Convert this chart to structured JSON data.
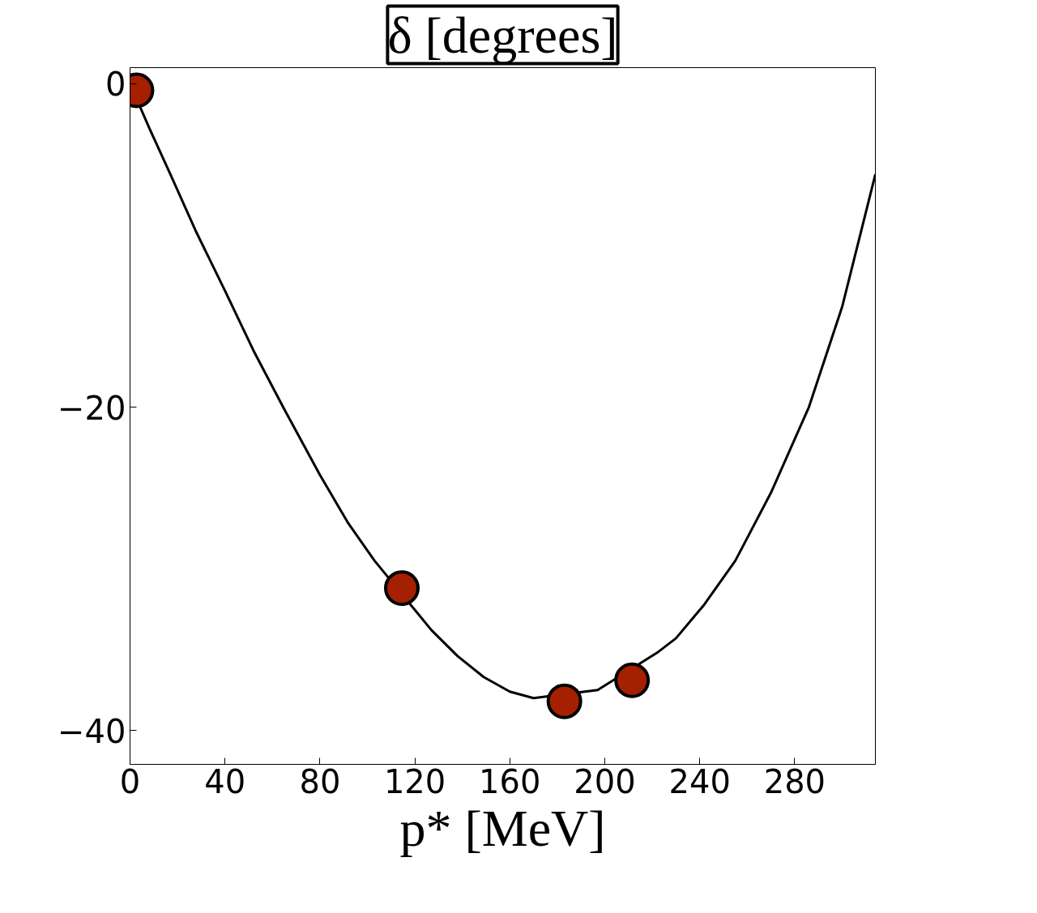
{
  "chart_data": {
    "type": "scatter",
    "ylabel": "δ [degrees]",
    "xlabel": "p* [MeV]",
    "xlim": [
      0,
      314
    ],
    "ylim": [
      -42.1,
      1.0
    ],
    "xticks": [
      0,
      40,
      80,
      120,
      160,
      200,
      240,
      280
    ],
    "yticks": [
      0,
      -20,
      -40
    ],
    "grid": false,
    "series": [
      {
        "type": "line",
        "color": "#000000",
        "line_style": "solid",
        "marker": "none",
        "x": [
          0,
          8,
          17,
          28,
          40,
          52,
          64.5,
          80,
          92,
          103,
          127,
          138,
          149,
          160,
          170,
          197,
          222,
          230,
          242,
          255,
          270,
          286,
          300,
          314
        ],
        "values": [
          0,
          -2.7,
          -5.6,
          -9.2,
          -12.8,
          -16.5,
          -20,
          -24.2,
          -27.2,
          -29.5,
          -33.8,
          -35.4,
          -36.7,
          -37.6,
          -38.0,
          -37.5,
          -35.2,
          -34.3,
          -32.2,
          -29.5,
          -25.3,
          -20,
          -13.8,
          -5.6
        ]
      },
      {
        "color": "#a52000",
        "marker": "circle",
        "x": [
          2.7,
          114.5,
          183,
          211.5
        ],
        "values": [
          -0.4,
          -31.2,
          -38.2,
          -36.9
        ]
      }
    ]
  }
}
